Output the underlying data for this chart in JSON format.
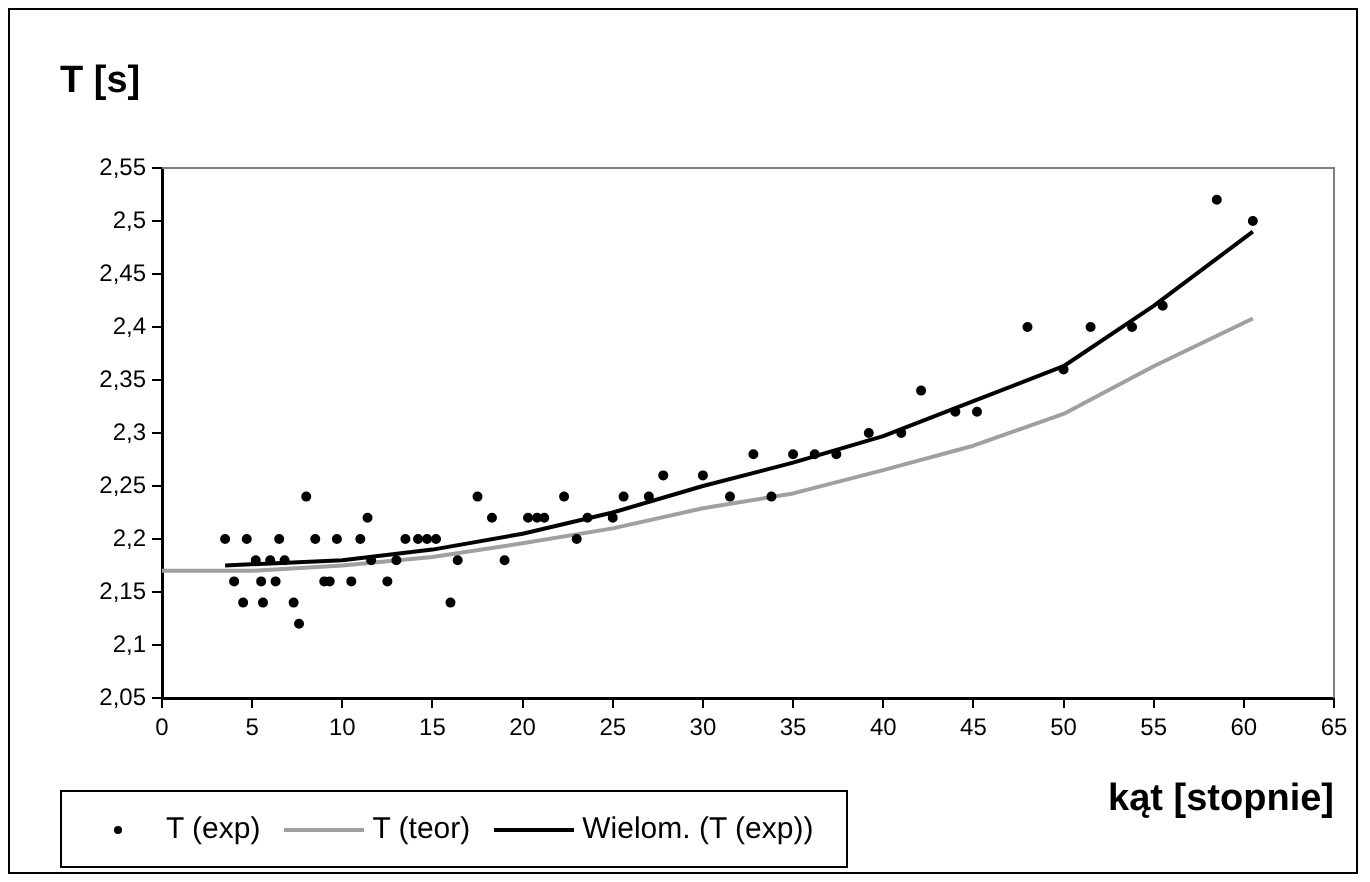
{
  "chart_data": {
    "type": "scatter",
    "title": "T [s]",
    "xlabel": "kąt [stopnie]",
    "xlim": [
      0,
      65
    ],
    "xticks": [
      0,
      5,
      10,
      15,
      20,
      25,
      30,
      35,
      40,
      45,
      50,
      55,
      60,
      65
    ],
    "ylim": [
      2.05,
      2.55
    ],
    "yticks": [
      {
        "value": 2.05,
        "label": "2,05"
      },
      {
        "value": 2.1,
        "label": "2,1"
      },
      {
        "value": 2.15,
        "label": "2,15"
      },
      {
        "value": 2.2,
        "label": "2,2"
      },
      {
        "value": 2.25,
        "label": "2,25"
      },
      {
        "value": 2.3,
        "label": "2,3"
      },
      {
        "value": 2.35,
        "label": "2,35"
      },
      {
        "value": 2.4,
        "label": "2,4"
      },
      {
        "value": 2.45,
        "label": "2,45"
      },
      {
        "value": 2.5,
        "label": "2,5"
      },
      {
        "value": 2.55,
        "label": "2,55"
      }
    ],
    "grid": false,
    "legend": "bottom left",
    "series": [
      {
        "name": "T (exp)",
        "marker": "circle",
        "color": "#000000",
        "x": [
          3.5,
          4,
          4.5,
          4.7,
          5.2,
          5.5,
          5.6,
          6,
          6.3,
          6.5,
          6.8,
          7.3,
          7.6,
          8,
          8.5,
          9,
          9.3,
          9.7,
          10.5,
          11,
          11.4,
          11.6,
          12.5,
          13,
          13.5,
          14.2,
          14.7,
          15.2,
          16,
          16.4,
          17.5,
          18.3,
          19,
          20.3,
          20.8,
          21.2,
          22.3,
          23,
          23.6,
          25,
          25.6,
          27,
          27.8,
          30,
          31.5,
          32.8,
          33.8,
          35,
          36.2,
          37.4,
          39.2,
          41,
          42.1,
          44,
          45.2,
          48,
          50,
          51.5,
          53.8,
          55.5,
          58.5,
          60.5
        ],
        "values": [
          2.2,
          2.16,
          2.14,
          2.2,
          2.18,
          2.16,
          2.14,
          2.18,
          2.16,
          2.2,
          2.18,
          2.14,
          2.12,
          2.24,
          2.2,
          2.16,
          2.16,
          2.2,
          2.16,
          2.2,
          2.22,
          2.18,
          2.16,
          2.18,
          2.2,
          2.2,
          2.2,
          2.2,
          2.14,
          2.18,
          2.24,
          2.22,
          2.18,
          2.22,
          2.22,
          2.22,
          2.24,
          2.2,
          2.22,
          2.22,
          2.24,
          2.24,
          2.26,
          2.26,
          2.24,
          2.28,
          2.24,
          2.28,
          2.28,
          2.28,
          2.3,
          2.3,
          2.34,
          2.32,
          2.32,
          2.4,
          2.36,
          2.4,
          2.4,
          2.42,
          2.52,
          2.5
        ]
      },
      {
        "name": "T (teor)",
        "type": "line",
        "marker": "none",
        "color": "#a0a0a0",
        "x": [
          0,
          5,
          10,
          15,
          20,
          25,
          30,
          35,
          40,
          45,
          50,
          55,
          60.5
        ],
        "values": [
          2.17,
          2.17,
          2.175,
          2.183,
          2.196,
          2.21,
          2.229,
          2.243,
          2.265,
          2.288,
          2.318,
          2.363,
          2.408
        ]
      },
      {
        "name": "Wielom. (T (exp))",
        "type": "line",
        "marker": "none",
        "color": "#000000",
        "x": [
          3.5,
          10,
          15,
          20,
          25,
          30,
          35,
          40,
          45,
          50,
          55,
          60.5
        ],
        "values": [
          2.175,
          2.18,
          2.19,
          2.205,
          2.225,
          2.25,
          2.272,
          2.297,
          2.33,
          2.363,
          2.42,
          2.49
        ]
      }
    ]
  }
}
